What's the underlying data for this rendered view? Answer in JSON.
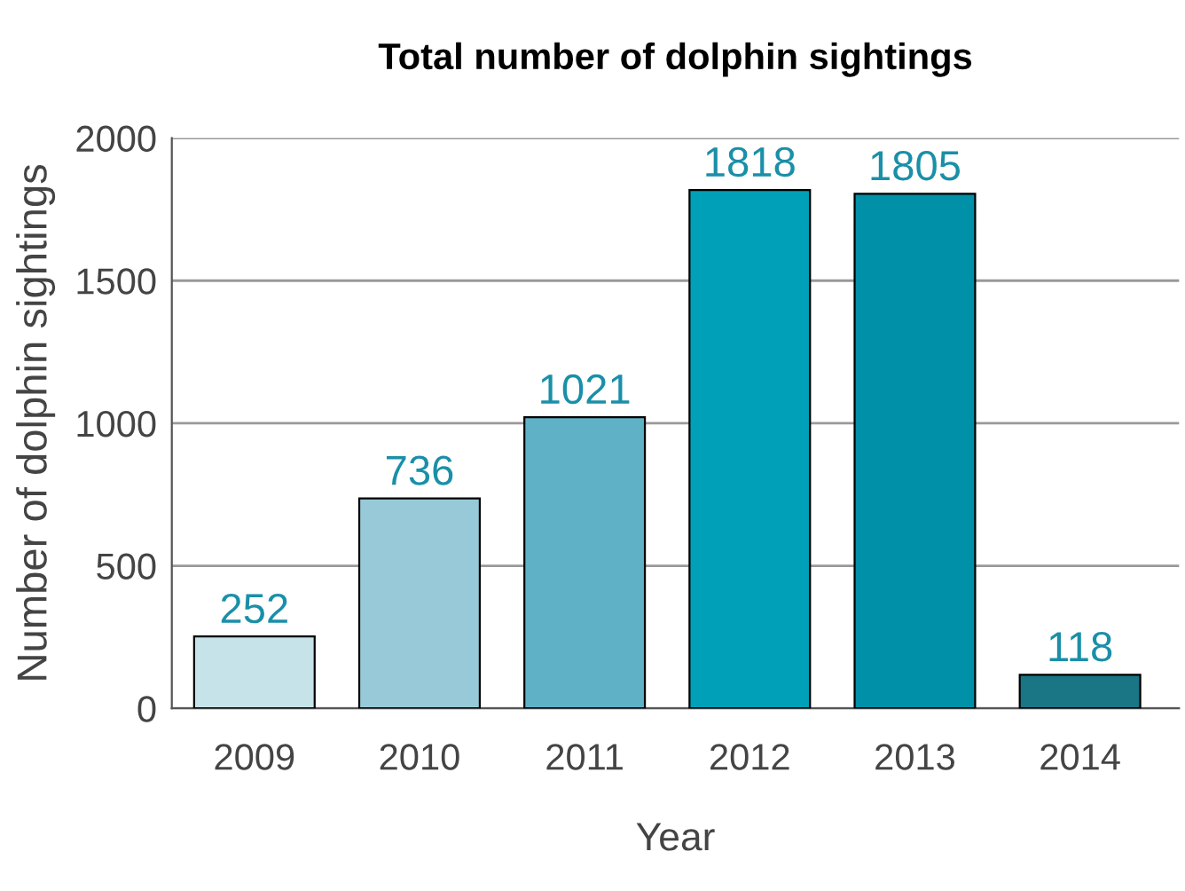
{
  "chart_data": {
    "type": "bar",
    "title": "Total number of dolphin sightings",
    "xlabel": "Year",
    "ylabel": "Number of dolphin sightings",
    "categories": [
      "2009",
      "2010",
      "2011",
      "2012",
      "2013",
      "2014"
    ],
    "values": [
      252,
      736,
      1021,
      1818,
      1805,
      118
    ],
    "colors": [
      "#c5e3e8",
      "#97c9d8",
      "#5fb2c6",
      "#00a0b8",
      "#0090a8",
      "#1a7585"
    ],
    "ylim": [
      0,
      2000
    ],
    "yticks": [
      0,
      500,
      1000,
      1500,
      2000
    ],
    "grid": "y",
    "data_labels": true,
    "legend": false
  }
}
